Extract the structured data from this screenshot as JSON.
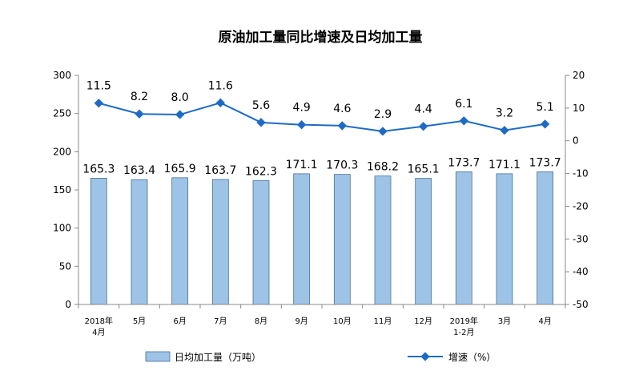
{
  "chart_data": {
    "type": "bar",
    "title": "原油加工量同比增速及日均加工量",
    "categories": [
      [
        "2018年",
        "4月"
      ],
      [
        "5月"
      ],
      [
        "6月"
      ],
      [
        "7月"
      ],
      [
        "8月"
      ],
      [
        "9月"
      ],
      [
        "10月"
      ],
      [
        "11月"
      ],
      [
        "12月"
      ],
      [
        "2019年",
        "1-2月"
      ],
      [
        "3月"
      ],
      [
        "4月"
      ]
    ],
    "series": [
      {
        "name": "日均加工量（万吨）",
        "type": "bar",
        "axis": "left",
        "values": [
          165.3,
          163.4,
          165.9,
          163.7,
          162.3,
          171.1,
          170.3,
          168.2,
          165.1,
          173.7,
          171.1,
          173.7
        ],
        "labels": [
          "165.3",
          "163.4",
          "165.9",
          "163.7",
          "162.3",
          "171.1",
          "170.3",
          "168.2",
          "165.1",
          "173.7",
          "171.1",
          "173.7"
        ],
        "color": "#9dc3e6"
      },
      {
        "name": "增速（%）",
        "type": "line",
        "axis": "right",
        "values": [
          11.5,
          8.2,
          8.0,
          11.6,
          5.6,
          4.9,
          4.6,
          2.9,
          4.4,
          6.1,
          3.2,
          5.1
        ],
        "labels": [
          "11.5",
          "8.2",
          "8.0",
          "11.6",
          "5.6",
          "4.9",
          "4.6",
          "2.9",
          "4.4",
          "6.1",
          "3.2",
          "5.1"
        ],
        "color": "#1f6bc4"
      }
    ],
    "ylim_left": [
      0,
      300
    ],
    "yticks_left": [
      "0",
      "50",
      "100",
      "150",
      "200",
      "250",
      "300"
    ],
    "ylim_right": [
      -50,
      20
    ],
    "yticks_right": [
      "-50",
      "-40",
      "-30",
      "-20",
      "-10",
      "0",
      "10",
      "20"
    ],
    "grid": false,
    "legend_position": "bottom"
  }
}
